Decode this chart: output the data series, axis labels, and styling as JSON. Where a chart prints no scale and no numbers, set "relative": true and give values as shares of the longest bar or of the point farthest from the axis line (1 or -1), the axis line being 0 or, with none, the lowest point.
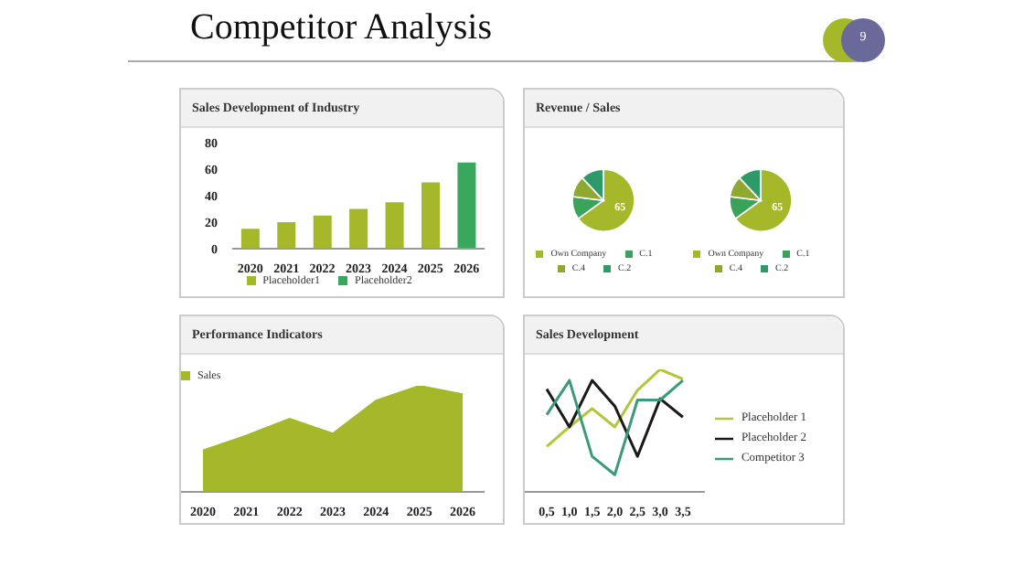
{
  "chart_data": [
    {
      "type": "other",
      "title": "Competitor Analysis",
      "annotations": [
        "9"
      ]
    },
    {
      "type": "bar",
      "title": "Sales Development of Industry",
      "categories": [
        "2020",
        "2021",
        "2022",
        "2023",
        "2024",
        "2025",
        "2026"
      ],
      "stacked": true,
      "ylim": [
        0,
        80
      ],
      "yticks": [
        0,
        20,
        40,
        60,
        80
      ],
      "legend": "bottom",
      "series": [
        {
          "name": "Placeholder1",
          "color": "#a4b82a",
          "values": [
            15,
            20,
            25,
            30,
            35,
            50,
            null
          ]
        },
        {
          "name": "Placeholder2",
          "color": "#3aa85c",
          "values": [
            null,
            null,
            null,
            null,
            null,
            null,
            65
          ]
        }
      ]
    },
    {
      "type": "pie",
      "title": "Revenue / Sales",
      "categories": [
        "Own Company",
        "C.1",
        "C.4",
        "C.2"
      ],
      "values": [
        65,
        12,
        11,
        12
      ],
      "value_labels": [
        "65",
        null,
        null,
        null
      ],
      "colors": [
        "#a4b82a",
        "#3aa35a",
        "#8fa832",
        "#2e9a6a"
      ],
      "legend": "bottom"
    },
    {
      "type": "pie",
      "categories": [
        "Own Company",
        "C.1",
        "C.4",
        "C.2"
      ],
      "values": [
        65,
        12,
        11,
        12
      ],
      "value_labels": [
        "65",
        null,
        null,
        null
      ],
      "colors": [
        "#a4b82a",
        "#3aa35a",
        "#8fa832",
        "#2e9a6a"
      ],
      "legend": "bottom"
    },
    {
      "type": "area",
      "title": "Performance Indicators",
      "categories": [
        "2020",
        "2021",
        "2022",
        "2023",
        "2024",
        "2025",
        "2026"
      ],
      "relative": true,
      "legend": "top left",
      "series": [
        {
          "name": "Sales",
          "color": "#a4b82a",
          "values": [
            0.39,
            0.53,
            0.69,
            0.55,
            0.86,
            1,
            0.92
          ]
        }
      ]
    },
    {
      "type": "line",
      "title": "Sales Development",
      "categories": [
        "0,5",
        "1,0",
        "1,5",
        "2,0",
        "2,5",
        "3,0",
        "3,5"
      ],
      "relative": true,
      "legend": "right",
      "series": [
        {
          "name": "Placeholder 1",
          "color": "#b5c43a",
          "values": [
            0.37,
            0.53,
            0.68,
            0.53,
            0.83,
            1,
            0.92
          ]
        },
        {
          "name": "Placeholder 2",
          "color": "#1a1a1a",
          "values": [
            0.84,
            0.53,
            0.91,
            0.7,
            0.29,
            0.76,
            0.61
          ]
        },
        {
          "name": "Competitor 3",
          "color": "#3a9a7a",
          "values": [
            0.63,
            0.91,
            0.29,
            0.14,
            0.75,
            0.75,
            0.91
          ]
        }
      ]
    }
  ]
}
